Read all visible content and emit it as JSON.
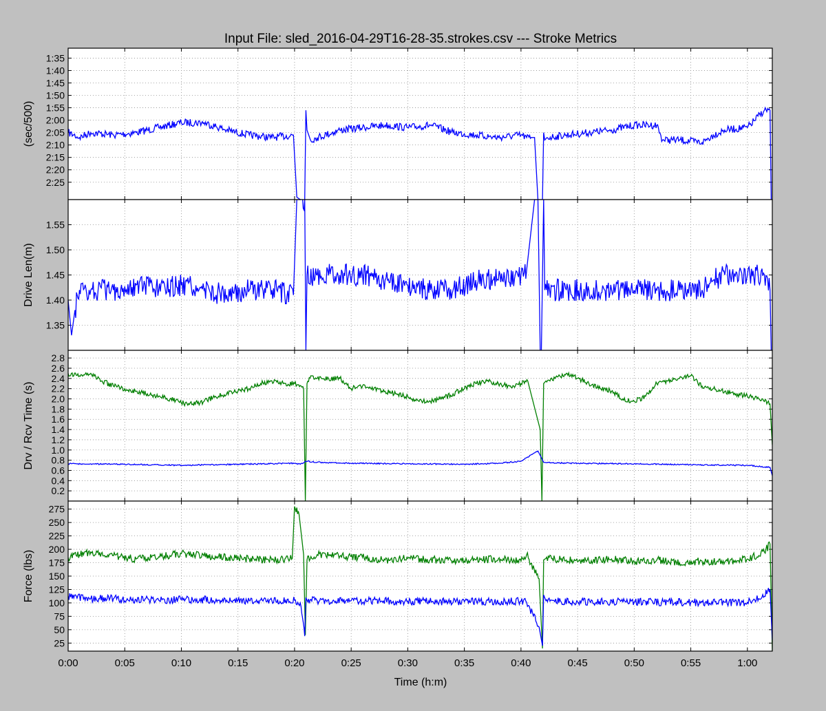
{
  "figure": {
    "title": "Input File:  sled_2016-04-29T16-28-35.strokes.csv --- Stroke Metrics",
    "xlabel": "Time (h:m)",
    "x_ticks": [
      "0:00",
      "0:05",
      "0:10",
      "0:15",
      "0:20",
      "0:25",
      "0:30",
      "0:35",
      "0:40",
      "0:45",
      "0:50",
      "0:55",
      "1:00"
    ],
    "x_tick_minutes": [
      0,
      5,
      10,
      15,
      20,
      25,
      30,
      35,
      40,
      45,
      50,
      55,
      60
    ],
    "xlim_minutes": [
      0,
      62.2
    ],
    "grid": true,
    "colors": {
      "background": "#c0c0c0",
      "plot_bg": "#ffffff",
      "blue": "#0000ff",
      "green": "#007f00",
      "grid": "#8a8a8a"
    }
  },
  "chart_data": [
    {
      "type": "line",
      "ylabel": "(sec/500)",
      "inverted_y": true,
      "ylim_seconds": [
        91,
        152
      ],
      "y_ticks": [
        "1:35",
        "1:40",
        "1:45",
        "1:50",
        "1:55",
        "2:00",
        "2:05",
        "2:10",
        "2:15",
        "2:20",
        "2:25"
      ],
      "y_tick_seconds": [
        95,
        100,
        105,
        110,
        115,
        120,
        125,
        130,
        135,
        140,
        145
      ],
      "series": [
        {
          "color": "#0000ff",
          "x": [
            0,
            0.5,
            1,
            2,
            4,
            6,
            8,
            10,
            12,
            14,
            16,
            18,
            19.9,
            20.2,
            20.5,
            20.9,
            21.0,
            21.1,
            21.4,
            22,
            24,
            26,
            28,
            30,
            32,
            34,
            36,
            38,
            40,
            40.5,
            40.9,
            41.2,
            41.5,
            41.8,
            41.9,
            42.0,
            42.1,
            42.3,
            44,
            46,
            48,
            50,
            52,
            52.5,
            54,
            56,
            57,
            58,
            60,
            61.5,
            62.0,
            62.1
          ],
          "y": [
            125,
            126,
            127,
            125,
            126,
            125,
            123,
            121,
            121,
            124,
            126,
            127,
            126,
            151,
            152,
            152,
            116,
            124,
            128,
            127,
            124,
            123,
            122,
            123,
            122,
            125,
            126,
            127,
            126,
            127,
            127,
            127,
            152,
            152,
            152,
            125,
            128,
            127,
            126,
            125,
            124,
            122,
            122,
            128,
            128,
            129,
            126,
            124,
            123,
            116,
            116,
            152
          ]
        }
      ]
    },
    {
      "type": "line",
      "ylabel": "Drive Len(m)",
      "ylim": [
        1.3,
        1.6
      ],
      "y_ticks": [
        "1.35",
        "1.40",
        "1.45",
        "1.50",
        "1.55"
      ],
      "y_tick_values": [
        1.35,
        1.4,
        1.45,
        1.5,
        1.55
      ],
      "series": [
        {
          "color": "#0000ff",
          "x": [
            0,
            0.3,
            0.6,
            1,
            2,
            4,
            6,
            8,
            10,
            12,
            14,
            16,
            18,
            19.9,
            20.2,
            20.5,
            20.9,
            21.0,
            21.1,
            22,
            24,
            26,
            28,
            30,
            32,
            34,
            36,
            38,
            40,
            40.5,
            41.2,
            41.5,
            41.7,
            41.8,
            42.0,
            42.1,
            44,
            46,
            48,
            50,
            52,
            54,
            56,
            57,
            58,
            60,
            61.5,
            62.0,
            62.1
          ],
          "y": [
            1.4,
            1.33,
            1.38,
            1.42,
            1.42,
            1.42,
            1.43,
            1.42,
            1.43,
            1.42,
            1.41,
            1.42,
            1.42,
            1.41,
            1.6,
            1.6,
            1.6,
            1.3,
            1.45,
            1.45,
            1.45,
            1.45,
            1.44,
            1.43,
            1.42,
            1.42,
            1.44,
            1.44,
            1.45,
            1.46,
            1.6,
            1.6,
            1.3,
            1.3,
            1.6,
            1.42,
            1.42,
            1.42,
            1.42,
            1.42,
            1.42,
            1.42,
            1.42,
            1.44,
            1.45,
            1.45,
            1.45,
            1.42,
            1.3
          ]
        }
      ]
    },
    {
      "type": "line",
      "ylabel": "Drv / Rcv Time (s)",
      "ylim": [
        0,
        2.95
      ],
      "y_ticks": [
        "0.2",
        "0.4",
        "0.6",
        "0.8",
        "1.0",
        "1.2",
        "1.4",
        "1.6",
        "1.8",
        "2.0",
        "2.2",
        "2.4",
        "2.6",
        "2.8"
      ],
      "y_tick_values": [
        0.2,
        0.4,
        0.6,
        0.8,
        1.0,
        1.2,
        1.4,
        1.6,
        1.8,
        2.0,
        2.2,
        2.4,
        2.6,
        2.8
      ],
      "series": [
        {
          "color": "#007f00",
          "x": [
            0,
            1,
            2,
            3,
            4,
            5,
            6,
            7,
            8,
            9,
            10,
            11,
            12,
            13,
            14,
            15,
            16,
            17,
            18,
            19,
            20,
            20.8,
            20.95,
            21.1,
            21.5,
            22,
            23,
            24,
            25,
            26,
            27,
            28,
            29,
            30,
            31,
            32,
            33,
            34,
            35,
            36,
            37,
            38,
            39,
            40,
            40.6,
            41.7,
            41.85,
            42.0,
            42.2,
            43,
            44,
            45,
            46,
            47,
            48,
            49,
            50,
            51,
            52,
            53,
            54,
            55,
            56,
            57,
            58,
            59,
            60,
            61,
            62,
            62.2
          ],
          "y": [
            2.5,
            2.45,
            2.5,
            2.35,
            2.25,
            2.2,
            2.15,
            2.1,
            2.05,
            2.0,
            1.92,
            1.9,
            1.95,
            2.05,
            2.1,
            2.15,
            2.2,
            2.3,
            2.35,
            2.3,
            2.3,
            2.2,
            0,
            2.3,
            2.45,
            2.4,
            2.4,
            2.4,
            2.2,
            2.25,
            2.2,
            2.15,
            2.1,
            2.05,
            1.95,
            1.95,
            2.0,
            2.1,
            2.2,
            2.3,
            2.35,
            2.3,
            2.25,
            2.3,
            2.35,
            1.4,
            0,
            2.3,
            2.35,
            2.4,
            2.5,
            2.4,
            2.3,
            2.2,
            2.15,
            2.0,
            1.95,
            2.05,
            2.3,
            2.35,
            2.4,
            2.45,
            2.25,
            2.2,
            2.15,
            2.1,
            2.05,
            2.0,
            1.9,
            1.1
          ]
        },
        {
          "color": "#0000ff",
          "x": [
            0,
            5,
            10,
            15,
            20,
            20.5,
            21,
            22,
            25,
            30,
            35,
            38,
            40,
            41.5,
            41.8,
            42,
            42.3,
            45,
            50,
            55,
            60,
            62,
            62.2
          ],
          "y": [
            0.73,
            0.72,
            0.7,
            0.72,
            0.74,
            0.72,
            0.78,
            0.76,
            0.74,
            0.73,
            0.72,
            0.74,
            0.78,
            0.98,
            0.85,
            0.76,
            0.75,
            0.74,
            0.73,
            0.71,
            0.7,
            0.66,
            0.5
          ]
        }
      ]
    },
    {
      "type": "line",
      "ylabel": "Force (lbs)",
      "ylim": [
        10,
        290
      ],
      "y_ticks": [
        "25",
        "50",
        "75",
        "100",
        "125",
        "150",
        "175",
        "200",
        "225",
        "250",
        "275"
      ],
      "y_tick_values": [
        25,
        50,
        75,
        100,
        125,
        150,
        175,
        200,
        225,
        250,
        275
      ],
      "series": [
        {
          "color": "#007f00",
          "x": [
            0,
            2,
            4,
            6,
            8,
            10,
            12,
            14,
            16,
            18,
            19.8,
            20.0,
            20.4,
            20.8,
            20.95,
            21.1,
            22,
            24,
            26,
            28,
            30,
            32,
            34,
            36,
            38,
            40,
            40.5,
            41.6,
            41.9,
            42.0,
            42.2,
            44,
            46,
            48,
            50,
            52,
            54,
            56,
            58,
            60,
            61.5,
            62.0,
            62.2
          ],
          "y": [
            185,
            195,
            188,
            182,
            186,
            192,
            188,
            185,
            182,
            180,
            183,
            280,
            265,
            190,
            40,
            180,
            190,
            187,
            185,
            180,
            183,
            181,
            178,
            180,
            182,
            178,
            190,
            145,
            15,
            180,
            183,
            180,
            178,
            182,
            178,
            180,
            175,
            178,
            176,
            182,
            195,
            210,
            10
          ]
        },
        {
          "color": "#0000ff",
          "x": [
            0,
            2,
            4,
            6,
            8,
            10,
            12,
            14,
            16,
            18,
            20,
            20.5,
            20.9,
            21.0,
            21.1,
            22,
            25,
            30,
            35,
            40,
            40.5,
            41.6,
            41.9,
            42.0,
            42.2,
            45,
            50,
            55,
            58,
            60,
            61,
            62,
            62.2
          ],
          "y": [
            113,
            108,
            108,
            106,
            105,
            106,
            106,
            105,
            104,
            104,
            105,
            100,
            38,
            110,
            105,
            104,
            104,
            103,
            102,
            103,
            101,
            55,
            20,
            115,
            104,
            102,
            102,
            101,
            101,
            101,
            108,
            125,
            30
          ]
        }
      ]
    }
  ]
}
